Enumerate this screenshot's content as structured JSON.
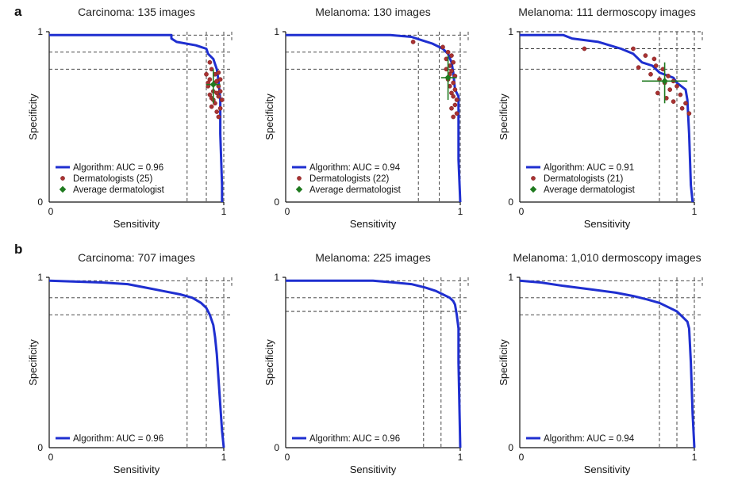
{
  "panel_labels": [
    "a",
    "b"
  ],
  "common": {
    "xlabel": "Sensitivity",
    "ylabel": "Specificity",
    "tick_0": "0",
    "tick_1": "1",
    "legend_labels": {
      "dermatologists": "Dermatologists",
      "average": "Average dermatologist"
    }
  },
  "colors": {
    "algorithm": "#1f2fd0",
    "dermatologists": "#a83232",
    "average": "#1f7a1f"
  },
  "chart_data": [
    {
      "type": "line",
      "panel": "a",
      "title": "Carcinoma: 135 images",
      "xlim": [
        0,
        1
      ],
      "ylim": [
        0,
        1
      ],
      "algorithm_auc": "Algorithm: AUC = 0.96",
      "dermatologist_count_label": "Dermatologists (25)",
      "roc": [
        [
          0,
          0.98
        ],
        [
          0.7,
          0.98
        ],
        [
          0.7,
          0.96
        ],
        [
          0.73,
          0.94
        ],
        [
          0.84,
          0.92
        ],
        [
          0.9,
          0.9
        ],
        [
          0.91,
          0.87
        ],
        [
          0.94,
          0.84
        ],
        [
          0.96,
          0.78
        ],
        [
          0.97,
          0.71
        ],
        [
          0.98,
          0.6
        ],
        [
          0.98,
          0.4
        ],
        [
          0.99,
          0.1
        ],
        [
          0.99,
          0
        ]
      ],
      "ref_sensitivity": [
        0.79,
        0.9,
        1.0
      ],
      "ref_specificity": [
        0.88,
        0.78,
        0.98
      ],
      "dermatologists": [
        [
          0.92,
          0.82
        ],
        [
          0.93,
          0.78
        ],
        [
          0.92,
          0.72
        ],
        [
          0.95,
          0.7
        ],
        [
          0.97,
          0.68
        ],
        [
          0.91,
          0.68
        ],
        [
          0.94,
          0.65
        ],
        [
          0.96,
          0.64
        ],
        [
          0.97,
          0.62
        ],
        [
          0.93,
          0.61
        ],
        [
          0.95,
          0.58
        ],
        [
          0.98,
          0.55
        ],
        [
          0.96,
          0.53
        ],
        [
          0.97,
          0.5
        ],
        [
          0.93,
          0.56
        ],
        [
          0.98,
          0.72
        ],
        [
          0.9,
          0.75
        ],
        [
          0.94,
          0.6
        ],
        [
          0.92,
          0.63
        ],
        [
          0.99,
          0.6
        ],
        [
          0.95,
          0.75
        ],
        [
          0.97,
          0.76
        ],
        [
          0.96,
          0.71
        ],
        [
          0.98,
          0.65
        ],
        [
          0.91,
          0.7
        ]
      ],
      "average_point": [
        0.94,
        0.69
      ],
      "average_err_x": [
        0.9,
        0.98
      ],
      "average_err_y": [
        0.58,
        0.78
      ]
    },
    {
      "type": "line",
      "panel": "a",
      "title": "Melanoma: 130 images",
      "xlim": [
        0,
        1
      ],
      "ylim": [
        0,
        1
      ],
      "algorithm_auc": "Algorithm: AUC = 0.94",
      "dermatologist_count_label": "Dermatologists (22)",
      "roc": [
        [
          0,
          0.98
        ],
        [
          0.6,
          0.98
        ],
        [
          0.72,
          0.97
        ],
        [
          0.78,
          0.95
        ],
        [
          0.84,
          0.93
        ],
        [
          0.9,
          0.9
        ],
        [
          0.93,
          0.87
        ],
        [
          0.95,
          0.82
        ],
        [
          0.96,
          0.76
        ],
        [
          0.97,
          0.66
        ],
        [
          0.99,
          0.62
        ],
        [
          0.99,
          0.25
        ],
        [
          1.0,
          0
        ]
      ],
      "ref_sensitivity": [
        0.76,
        0.88,
        1.0
      ],
      "ref_specificity": [
        0.88,
        0.78,
        0.98
      ],
      "dermatologists": [
        [
          0.73,
          0.94
        ],
        [
          0.9,
          0.91
        ],
        [
          0.93,
          0.88
        ],
        [
          0.95,
          0.86
        ],
        [
          0.92,
          0.84
        ],
        [
          0.96,
          0.82
        ],
        [
          0.94,
          0.8
        ],
        [
          0.95,
          0.77
        ],
        [
          0.97,
          0.74
        ],
        [
          0.93,
          0.72
        ],
        [
          0.96,
          0.7
        ],
        [
          0.94,
          0.68
        ],
        [
          0.97,
          0.66
        ],
        [
          0.95,
          0.64
        ],
        [
          0.96,
          0.62
        ],
        [
          0.98,
          0.6
        ],
        [
          0.97,
          0.57
        ],
        [
          0.95,
          0.55
        ],
        [
          0.98,
          0.52
        ],
        [
          0.96,
          0.5
        ],
        [
          0.94,
          0.75
        ],
        [
          0.92,
          0.78
        ]
      ],
      "average_point": [
        0.93,
        0.73
      ],
      "average_err_x": [
        0.89,
        0.98
      ],
      "average_err_y": [
        0.6,
        0.86
      ]
    },
    {
      "type": "line",
      "panel": "a",
      "title": "Melanoma: 111 dermoscopy images",
      "xlim": [
        0,
        1
      ],
      "ylim": [
        0,
        1
      ],
      "algorithm_auc": "Algorithm: AUC = 0.91",
      "dermatologist_count_label": "Dermatologists (21)",
      "roc": [
        [
          0,
          0.98
        ],
        [
          0.25,
          0.98
        ],
        [
          0.3,
          0.96
        ],
        [
          0.45,
          0.94
        ],
        [
          0.58,
          0.9
        ],
        [
          0.65,
          0.87
        ],
        [
          0.7,
          0.82
        ],
        [
          0.76,
          0.8
        ],
        [
          0.8,
          0.76
        ],
        [
          0.88,
          0.73
        ],
        [
          0.9,
          0.7
        ],
        [
          0.95,
          0.66
        ],
        [
          0.96,
          0.6
        ],
        [
          0.97,
          0.4
        ],
        [
          0.98,
          0.1
        ],
        [
          0.99,
          0
        ]
      ],
      "ref_sensitivity": [
        0.8,
        0.9,
        1.0
      ],
      "ref_specificity": [
        0.9,
        0.78,
        1.0
      ],
      "dermatologists": [
        [
          0.37,
          0.9
        ],
        [
          0.65,
          0.9
        ],
        [
          0.72,
          0.86
        ],
        [
          0.77,
          0.84
        ],
        [
          0.78,
          0.8
        ],
        [
          0.68,
          0.79
        ],
        [
          0.82,
          0.78
        ],
        [
          0.75,
          0.75
        ],
        [
          0.85,
          0.74
        ],
        [
          0.8,
          0.72
        ],
        [
          0.88,
          0.71
        ],
        [
          0.83,
          0.7
        ],
        [
          0.9,
          0.68
        ],
        [
          0.86,
          0.66
        ],
        [
          0.79,
          0.64
        ],
        [
          0.92,
          0.63
        ],
        [
          0.84,
          0.61
        ],
        [
          0.88,
          0.59
        ],
        [
          0.95,
          0.58
        ],
        [
          0.93,
          0.55
        ],
        [
          0.97,
          0.52
        ]
      ],
      "average_point": [
        0.83,
        0.71
      ],
      "average_err_x": [
        0.7,
        0.96
      ],
      "average_err_y": [
        0.58,
        0.82
      ]
    },
    {
      "type": "line",
      "panel": "b",
      "title": "Carcinoma: 707 images",
      "xlim": [
        0,
        1
      ],
      "ylim": [
        0,
        1
      ],
      "algorithm_auc": "Algorithm: AUC = 0.96",
      "roc": [
        [
          0,
          0.98
        ],
        [
          0.3,
          0.97
        ],
        [
          0.45,
          0.96
        ],
        [
          0.55,
          0.94
        ],
        [
          0.65,
          0.92
        ],
        [
          0.75,
          0.9
        ],
        [
          0.82,
          0.88
        ],
        [
          0.87,
          0.85
        ],
        [
          0.9,
          0.82
        ],
        [
          0.92,
          0.78
        ],
        [
          0.94,
          0.72
        ],
        [
          0.95,
          0.65
        ],
        [
          0.96,
          0.55
        ],
        [
          0.97,
          0.4
        ],
        [
          0.98,
          0.25
        ],
        [
          0.99,
          0.1
        ],
        [
          1.0,
          0
        ]
      ],
      "ref_sensitivity": [
        0.79,
        0.9,
        1.0
      ],
      "ref_specificity": [
        0.88,
        0.78,
        0.98
      ]
    },
    {
      "type": "line",
      "panel": "b",
      "title": "Melanoma: 225 images",
      "xlim": [
        0,
        1
      ],
      "ylim": [
        0,
        1
      ],
      "algorithm_auc": "Algorithm: AUC = 0.96",
      "roc": [
        [
          0,
          0.98
        ],
        [
          0.5,
          0.98
        ],
        [
          0.62,
          0.97
        ],
        [
          0.72,
          0.96
        ],
        [
          0.8,
          0.94
        ],
        [
          0.86,
          0.92
        ],
        [
          0.9,
          0.9
        ],
        [
          0.94,
          0.88
        ],
        [
          0.96,
          0.86
        ],
        [
          0.97,
          0.84
        ],
        [
          0.98,
          0.78
        ],
        [
          0.99,
          0.7
        ],
        [
          0.99,
          0.5
        ],
        [
          1.0,
          0
        ]
      ],
      "ref_sensitivity": [
        0.79,
        0.89,
        1.0
      ],
      "ref_specificity": [
        0.88,
        0.8,
        0.98
      ]
    },
    {
      "type": "line",
      "panel": "b",
      "title": "Melanoma: 1,010 dermoscopy images",
      "xlim": [
        0,
        1
      ],
      "ylim": [
        0,
        1
      ],
      "algorithm_auc": "Algorithm: AUC = 0.94",
      "roc": [
        [
          0,
          0.98
        ],
        [
          0.12,
          0.97
        ],
        [
          0.25,
          0.95
        ],
        [
          0.4,
          0.93
        ],
        [
          0.55,
          0.91
        ],
        [
          0.65,
          0.89
        ],
        [
          0.73,
          0.87
        ],
        [
          0.8,
          0.85
        ],
        [
          0.86,
          0.82
        ],
        [
          0.9,
          0.8
        ],
        [
          0.93,
          0.77
        ],
        [
          0.96,
          0.74
        ],
        [
          0.97,
          0.7
        ],
        [
          0.98,
          0.5
        ],
        [
          0.99,
          0.2
        ],
        [
          1.0,
          0
        ]
      ],
      "ref_sensitivity": [
        0.8,
        0.9,
        1.0
      ],
      "ref_specificity": [
        0.88,
        0.78,
        0.98
      ]
    }
  ]
}
